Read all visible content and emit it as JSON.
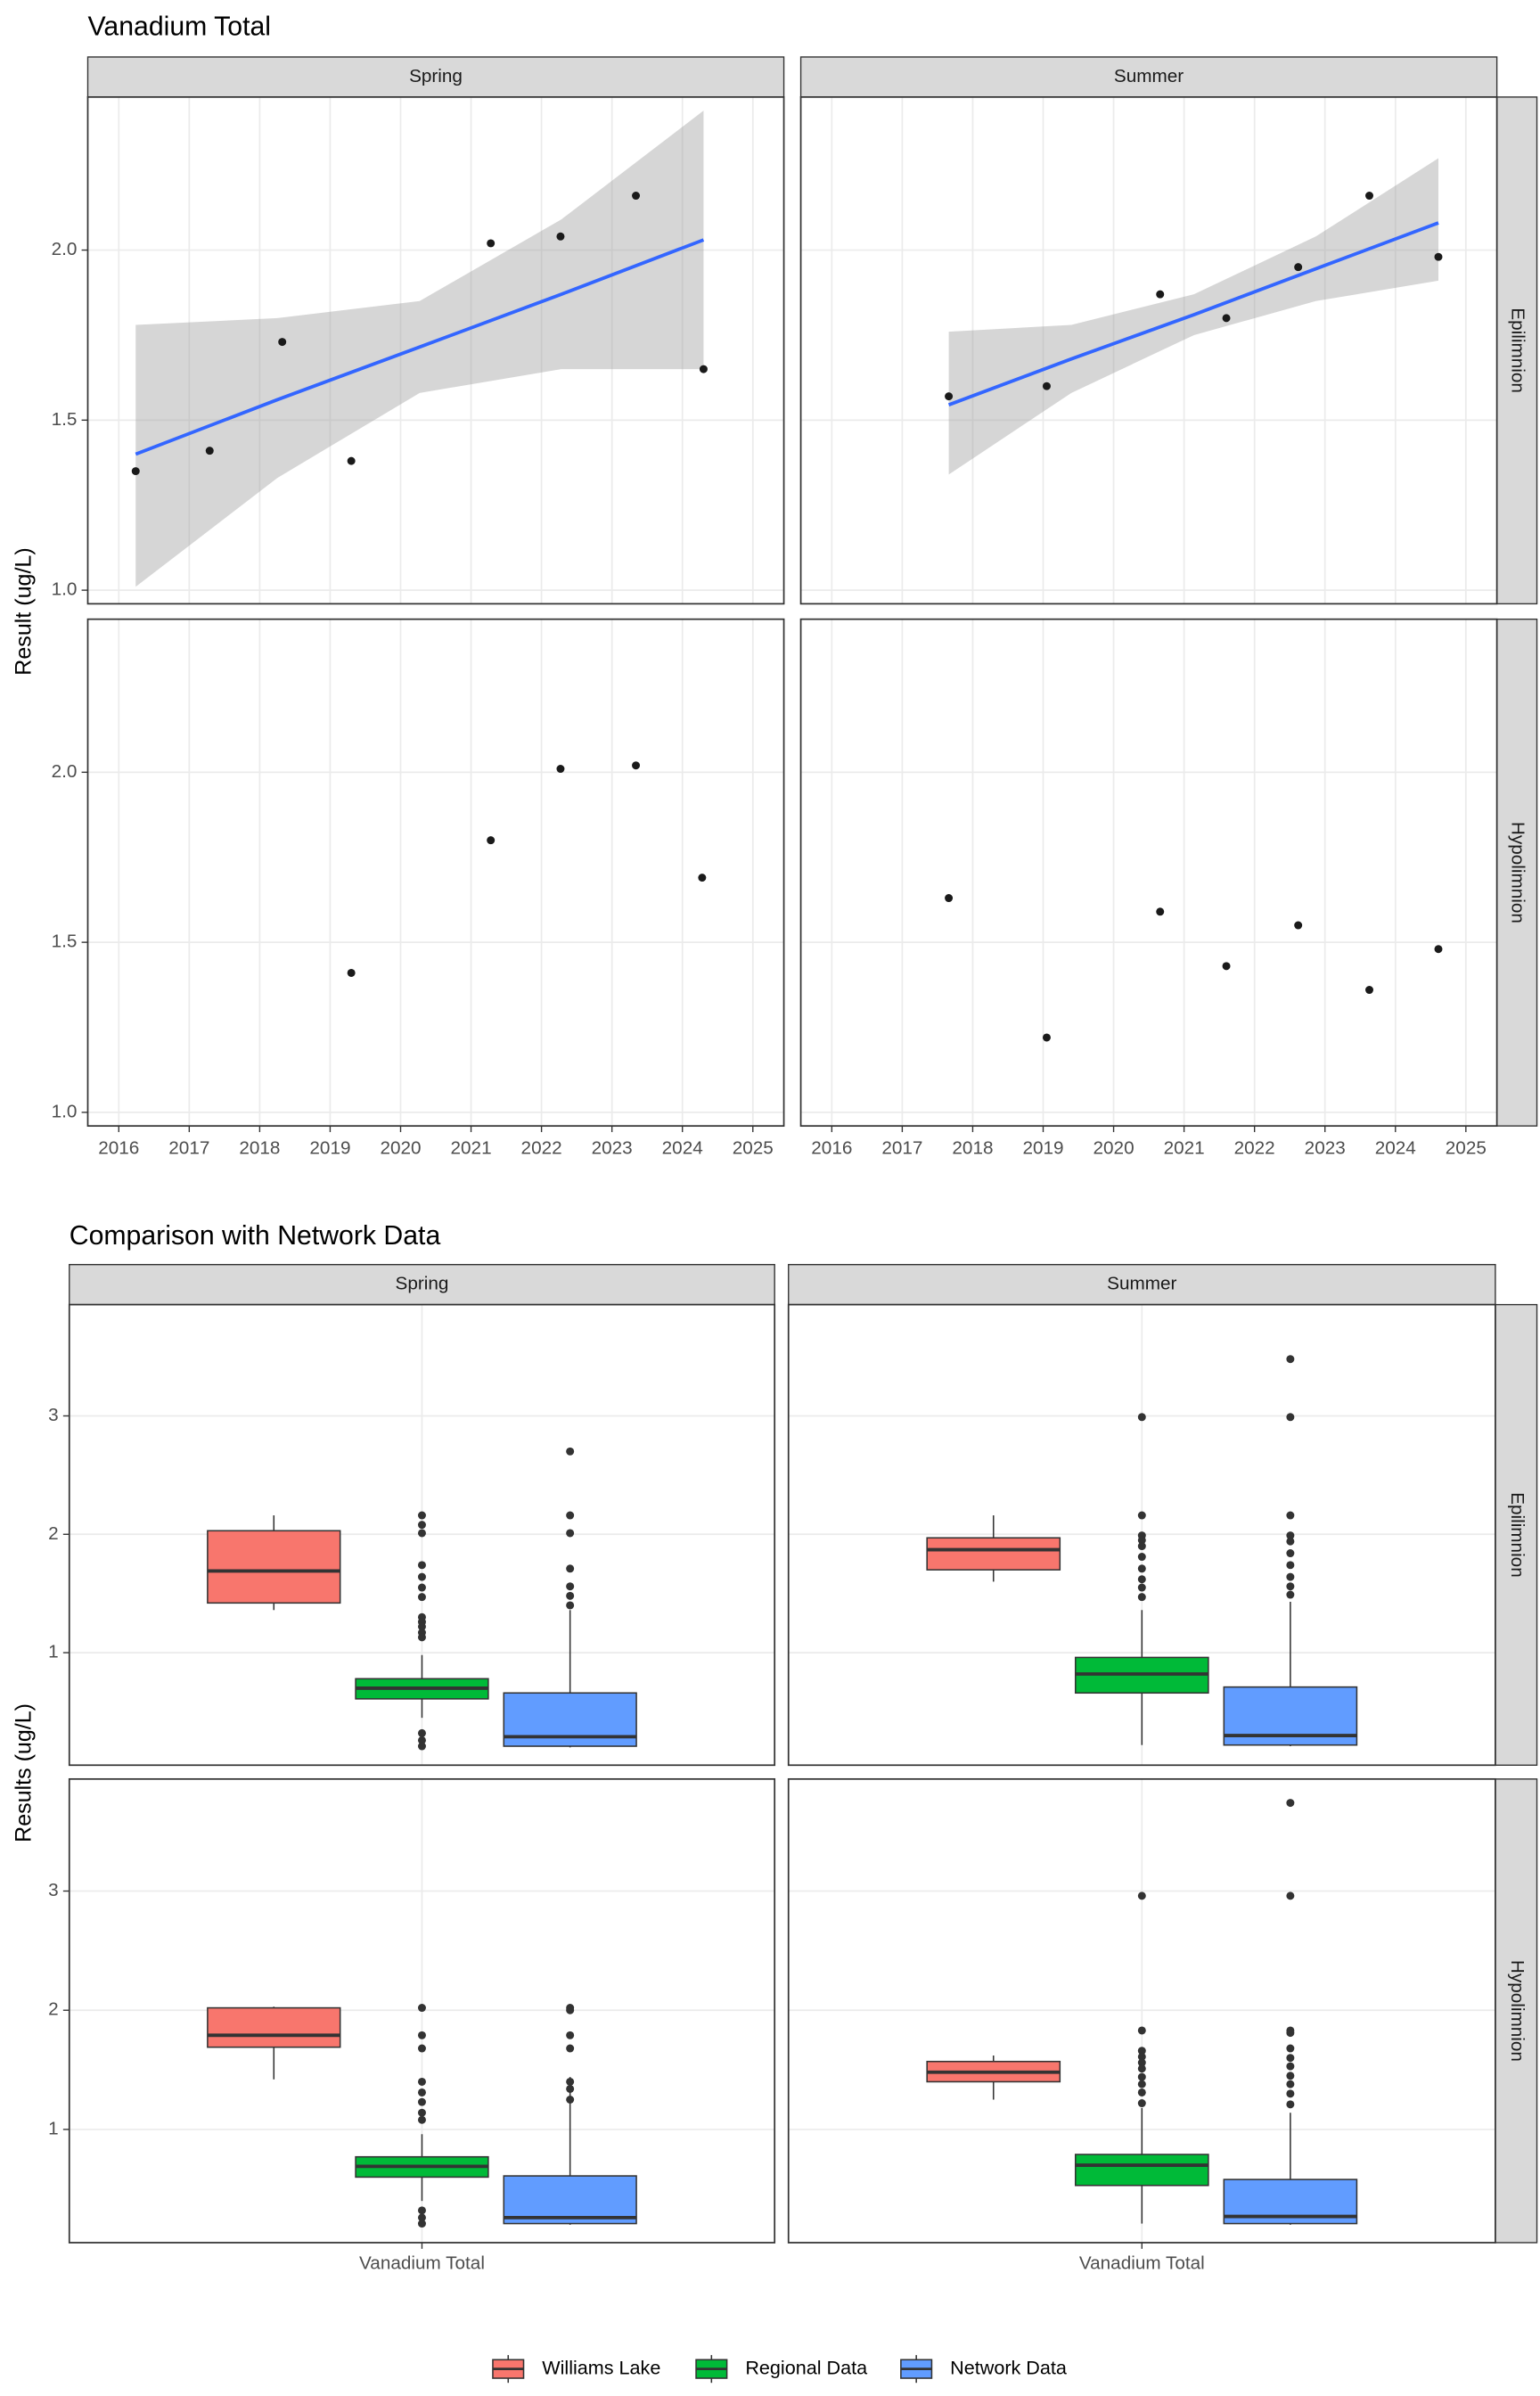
{
  "chart_data": [
    {
      "type": "scatter",
      "title": "Vanadium Total",
      "y_label": "Result (ug/L)",
      "columns": [
        "Spring",
        "Summer"
      ],
      "rows": [
        "Epilimnion",
        "Hypolimnion"
      ],
      "xlim": [
        2015.56,
        2025.44
      ],
      "xticks": [
        2016,
        2017,
        2018,
        2019,
        2020,
        2021,
        2022,
        2023,
        2024,
        2025
      ],
      "ylim": [
        0.96,
        2.45
      ],
      "yticks": [
        {
          "value": 1,
          "label": "1.0"
        },
        1.5,
        {
          "value": 2,
          "label": "2.0"
        }
      ],
      "grid": true,
      "point_color": "#1a1a1a",
      "line_color": "#3366FF",
      "band_color": "#999999",
      "panels": [
        [
          {
            "x": [
              2016.24,
              2017.29,
              2018.32,
              2019.3,
              2021.28,
              2022.27,
              2023.34,
              2024.3
            ],
            "values": [
              1.35,
              1.41,
              1.73,
              1.38,
              2.02,
              2.04,
              2.16,
              1.65
            ],
            "trend": {
              "x": [
                2016.24,
                2018.25,
                2020.27,
                2022.28,
                2024.3
              ],
              "values": [
                1.4,
                1.56,
                1.715,
                1.87,
                2.03
              ],
              "lower": [
                1.01,
                1.33,
                1.58,
                1.65,
                1.65
              ],
              "upper": [
                1.78,
                1.8,
                1.85,
                2.09,
                2.41
              ]
            }
          },
          {
            "x": [
              2017.66,
              2019.05,
              2020.66,
              2021.6,
              2022.62,
              2023.63,
              2024.61
            ],
            "values": [
              1.57,
              1.6,
              1.87,
              1.8,
              1.95,
              2.16,
              1.98
            ],
            "trend": {
              "x": [
                2017.66,
                2019.4,
                2021.14,
                2022.87,
                2024.61
              ],
              "values": [
                1.545,
                1.68,
                1.81,
                1.945,
                2.08
              ],
              "lower": [
                1.34,
                1.58,
                1.75,
                1.85,
                1.91
              ],
              "upper": [
                1.76,
                1.78,
                1.87,
                2.04,
                2.27
              ]
            }
          }
        ],
        [
          {
            "x": [
              2019.3,
              2021.28,
              2022.27,
              2023.34,
              2024.28
            ],
            "values": [
              1.41,
              1.8,
              2.01,
              2.02,
              1.69
            ]
          },
          {
            "x": [
              2017.66,
              2019.05,
              2020.66,
              2021.6,
              2022.62,
              2023.63,
              2024.61
            ],
            "values": [
              1.63,
              1.22,
              1.59,
              1.43,
              1.55,
              1.36,
              1.48
            ]
          }
        ]
      ]
    },
    {
      "type": "box",
      "title": "Comparison with Network Data",
      "y_label": "Results (ug/L)",
      "columns": [
        "Spring",
        "Summer"
      ],
      "rows": [
        "Epilimnion",
        "Hypolimnion"
      ],
      "categories": [
        "Vanadium Total"
      ],
      "ylim": [
        0.05,
        3.94
      ],
      "yticks": [
        1,
        2,
        3
      ],
      "grid": true,
      "outlier_color": "#333333",
      "series": [
        {
          "name": "Williams Lake",
          "color": "#F8766D"
        },
        {
          "name": "Regional Data",
          "color": "#00BA38"
        },
        {
          "name": "Network Data",
          "color": "#619CFF"
        }
      ],
      "panels": [
        [
          [
            {
              "min": 1.36,
              "q1": 1.42,
              "median": 1.69,
              "q3": 2.03,
              "max": 2.16,
              "outliers": []
            },
            {
              "min": 0.45,
              "q1": 0.61,
              "median": 0.7,
              "q3": 0.78,
              "max": 0.98,
              "outliers": [
                2.16,
                2.08,
                2.01,
                1.74,
                1.64,
                1.55,
                1.47,
                1.3,
                1.26,
                1.22,
                1.17,
                1.13,
                0.32,
                0.26,
                0.21
              ]
            },
            {
              "min": 0.2,
              "q1": 0.21,
              "median": 0.29,
              "q3": 0.66,
              "max": 1.36,
              "outliers": [
                2.7,
                2.16,
                2.01,
                1.71,
                1.56,
                1.48,
                1.4
              ]
            }
          ],
          [
            {
              "min": 1.6,
              "q1": 1.7,
              "median": 1.87,
              "q3": 1.97,
              "max": 2.16,
              "outliers": []
            },
            {
              "min": 0.22,
              "q1": 0.66,
              "median": 0.82,
              "q3": 0.96,
              "max": 1.36,
              "outliers": [
                2.99,
                2.16,
                1.99,
                1.95,
                1.9,
                1.81,
                1.71,
                1.62,
                1.55,
                1.47
              ]
            },
            {
              "min": 0.21,
              "q1": 0.22,
              "median": 0.3,
              "q3": 0.71,
              "max": 1.43,
              "outliers": [
                3.48,
                2.99,
                2.16,
                1.99,
                1.94,
                1.84,
                1.74,
                1.64,
                1.56,
                1.49
              ]
            }
          ]
        ],
        [
          [
            {
              "min": 1.42,
              "q1": 1.69,
              "median": 1.79,
              "q3": 2.02,
              "max": 2.03,
              "outliers": []
            },
            {
              "min": 0.4,
              "q1": 0.6,
              "median": 0.69,
              "q3": 0.77,
              "max": 0.96,
              "outliers": [
                2.02,
                1.79,
                1.68,
                1.4,
                1.31,
                1.23,
                1.14,
                1.08,
                0.32,
                0.26,
                0.21
              ]
            },
            {
              "min": 0.2,
              "q1": 0.21,
              "median": 0.26,
              "q3": 0.61,
              "max": 1.44,
              "outliers": [
                2.02,
                2.0,
                1.79,
                1.68,
                1.4,
                1.34,
                1.25
              ]
            }
          ],
          [
            {
              "min": 1.25,
              "q1": 1.4,
              "median": 1.48,
              "q3": 1.57,
              "max": 1.62,
              "outliers": []
            },
            {
              "min": 0.21,
              "q1": 0.53,
              "median": 0.7,
              "q3": 0.79,
              "max": 1.18,
              "outliers": [
                2.96,
                1.83,
                1.66,
                1.61,
                1.56,
                1.51,
                1.44,
                1.38,
                1.31,
                1.22
              ]
            },
            {
              "min": 0.2,
              "q1": 0.21,
              "median": 0.27,
              "q3": 0.58,
              "max": 1.14,
              "outliers": [
                3.74,
                2.96,
                1.83,
                1.81,
                1.68,
                1.6,
                1.53,
                1.45,
                1.38,
                1.3,
                1.21
              ]
            }
          ]
        ]
      ]
    }
  ]
}
